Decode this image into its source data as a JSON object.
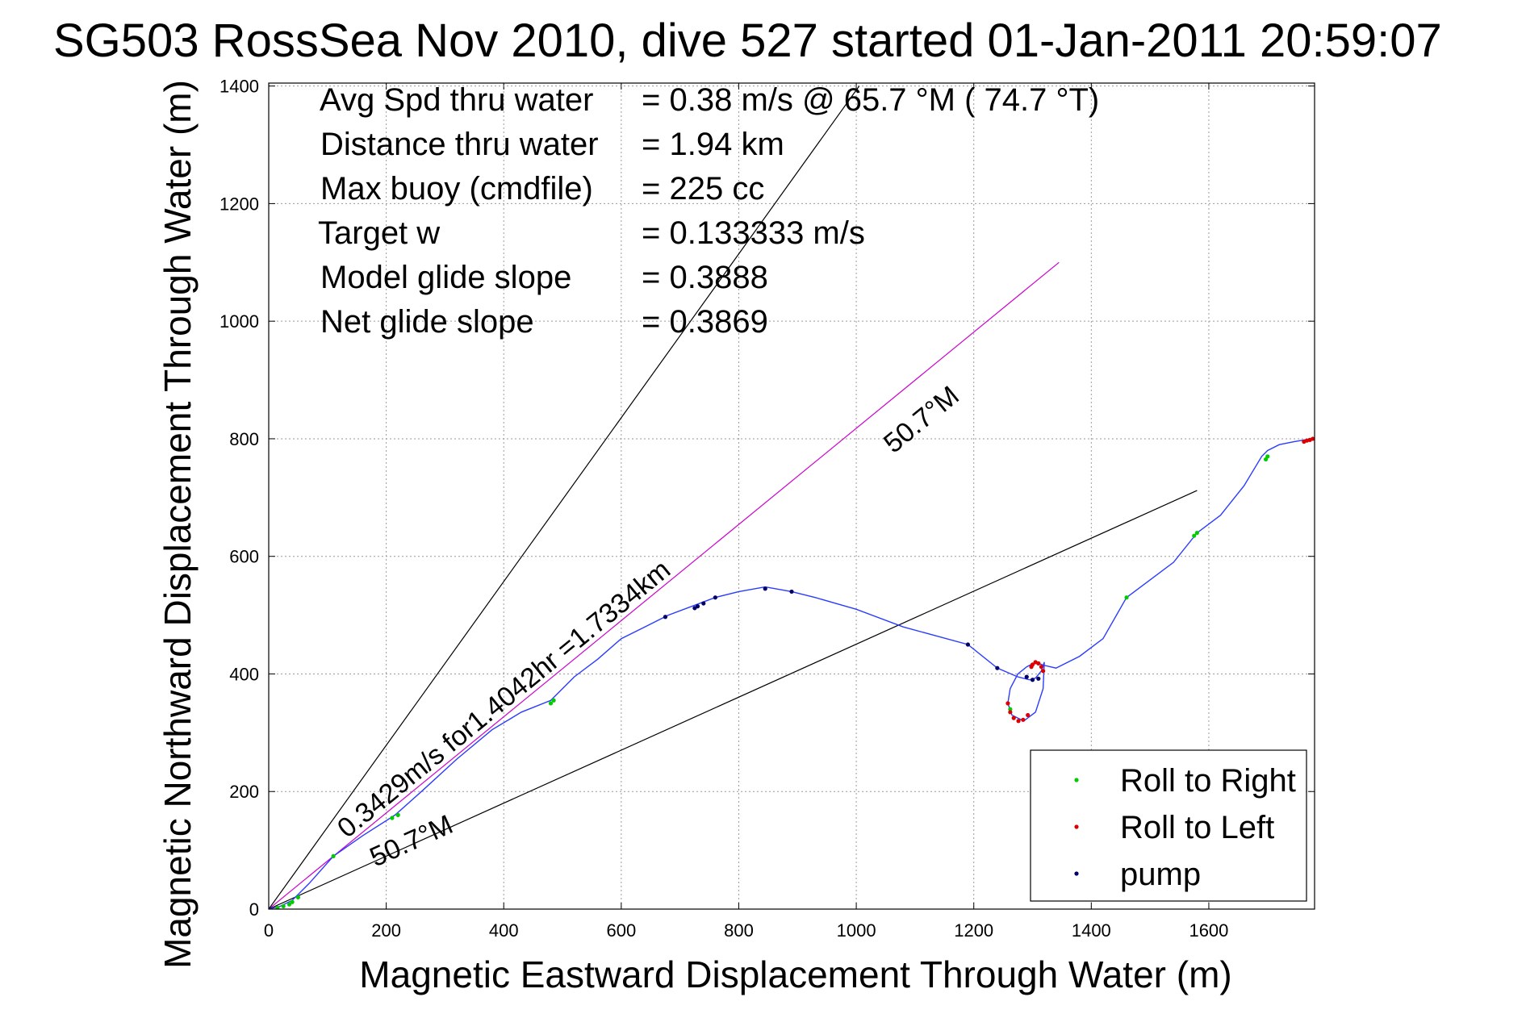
{
  "chart_data": {
    "type": "scatter",
    "title": "SG503 RossSea Nov 2010, dive 527 started 01-Jan-2011 20:59:07",
    "xlabel": "Magnetic Eastward Displacement Through Water (m)",
    "ylabel": "Magnetic Northward Displacement Through Water (m)",
    "xlim": [
      0,
      1780
    ],
    "ylim": [
      0,
      1405
    ],
    "xticks": [
      0,
      200,
      400,
      600,
      800,
      1000,
      1200,
      1400,
      1600
    ],
    "yticks": [
      0,
      200,
      400,
      600,
      800,
      1000,
      1200,
      1400
    ],
    "grid": true,
    "legend_position": "bottom-right",
    "info_rows": [
      {
        "label": "Avg Spd thru water",
        "value": "=  0.38 m/s @   65.7 °M ( 74.7 °T)"
      },
      {
        "label": "Distance thru water",
        "value": "=  1.94 km"
      },
      {
        "label": "Max buoy (cmdfile)",
        "value": "= 225 cc"
      },
      {
        "label": "Target w",
        "value": "= 0.133333 m/s"
      },
      {
        "label": "Model glide slope",
        "value": "= 0.3888"
      },
      {
        "label": "Net glide slope",
        "value": "= 0.3869"
      }
    ],
    "annotations": {
      "course_line": "0.3429m/s for1.4042hr =1.7334km",
      "upper_heading": "50.7°M",
      "lower_heading": "50.7°M"
    },
    "track": {
      "x": [
        0,
        20,
        40,
        70,
        110,
        160,
        215,
        260,
        320,
        380,
        430,
        480,
        520,
        560,
        600,
        640,
        680,
        720,
        760,
        800,
        845,
        890,
        930,
        1000,
        1080,
        1190,
        1240,
        1275,
        1295,
        1305,
        1315,
        1320,
        1318,
        1305,
        1285,
        1265,
        1258,
        1262,
        1275,
        1290,
        1305,
        1318,
        1340,
        1380,
        1420,
        1460,
        1500,
        1540,
        1580,
        1620,
        1660,
        1690,
        1700,
        1720,
        1745,
        1762,
        1775
      ],
      "y": [
        0,
        5,
        15,
        45,
        90,
        125,
        160,
        200,
        255,
        305,
        335,
        355,
        395,
        425,
        460,
        480,
        500,
        515,
        530,
        540,
        548,
        540,
        530,
        510,
        480,
        450,
        410,
        395,
        390,
        393,
        405,
        420,
        375,
        335,
        320,
        330,
        350,
        375,
        400,
        412,
        420,
        415,
        410,
        430,
        460,
        530,
        560,
        590,
        640,
        670,
        720,
        770,
        780,
        790,
        795,
        798,
        800
      ]
    },
    "series": [
      {
        "name": "Roll to Right",
        "color": "#00cc00",
        "x": [
          15,
          25,
          35,
          40,
          50,
          110,
          210,
          220,
          480,
          485,
          1262,
          1460,
          1575,
          1580,
          1697,
          1700
        ],
        "y": [
          2,
          5,
          8,
          12,
          20,
          90,
          155,
          160,
          350,
          355,
          340,
          530,
          635,
          640,
          765,
          770
        ]
      },
      {
        "name": "Roll to Left",
        "color": "#dd0000",
        "x": [
          1258,
          1262,
          1268,
          1276,
          1284,
          1292,
          1298,
          1300,
          1305,
          1310,
          1315,
          1318,
          1762,
          1767,
          1772,
          1777
        ],
        "y": [
          350,
          335,
          325,
          320,
          322,
          330,
          412,
          416,
          420,
          418,
          412,
          405,
          795,
          797,
          798,
          800
        ]
      },
      {
        "name": "pump",
        "color": "#000066",
        "x": [
          730,
          740,
          760,
          845,
          890,
          1190,
          1240,
          1290,
          1300,
          1310,
          675,
          725
        ],
        "y": [
          515,
          520,
          530,
          545,
          540,
          450,
          410,
          395,
          390,
          392,
          497,
          512
        ]
      }
    ],
    "reference_lines": [
      {
        "name": "course",
        "color": "#cc00cc",
        "x": [
          0,
          1345
        ],
        "y": [
          0,
          1100
        ]
      },
      {
        "name": "upper-bound",
        "color": "#000000",
        "x": [
          0,
          1005
        ],
        "y": [
          0,
          1400
        ]
      },
      {
        "name": "lower-bound",
        "color": "#000000",
        "x": [
          0,
          1580
        ],
        "y": [
          0,
          712
        ]
      }
    ]
  }
}
